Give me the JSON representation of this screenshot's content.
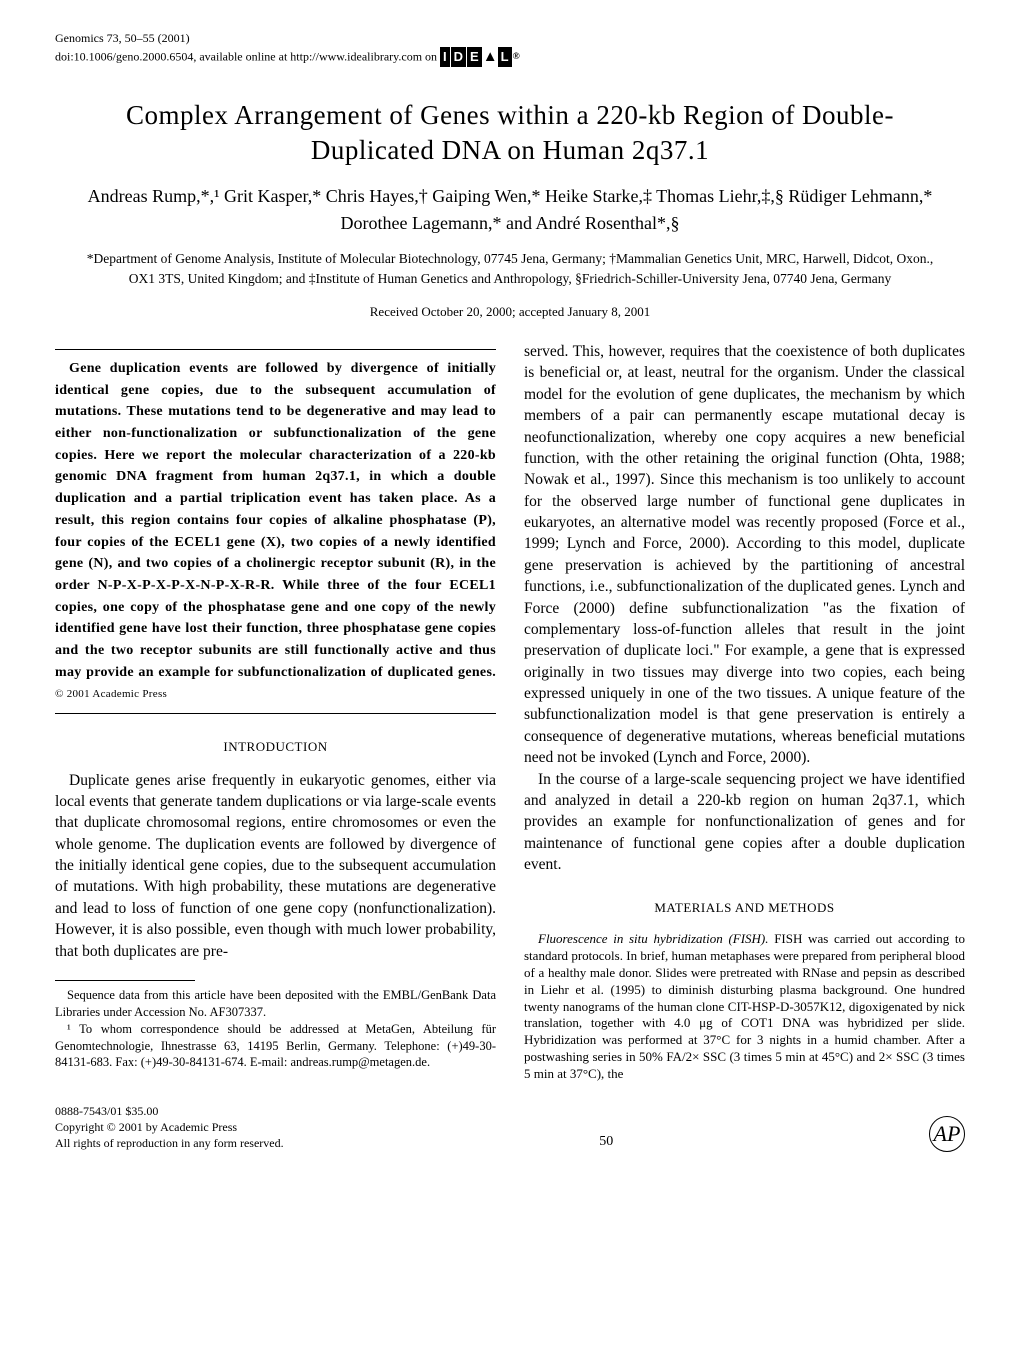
{
  "header": {
    "journal": "Genomics 73, 50–55 (2001)",
    "doi": "doi:10.1006/geno.2000.6504, available online at http://www.idealibrary.com on",
    "logo_text": "IDEAL",
    "logo_reg": "®"
  },
  "title": "Complex Arrangement of Genes within a 220-kb Region of Double-Duplicated DNA on Human 2q37.1",
  "authors": "Andreas Rump,*,¹ Grit Kasper,* Chris Hayes,† Gaiping Wen,* Heike Starke,‡ Thomas Liehr,‡,§ Rüdiger Lehmann,* Dorothee Lagemann,* and André Rosenthal*,§",
  "affiliations": "*Department of Genome Analysis, Institute of Molecular Biotechnology, 07745 Jena, Germany; †Mammalian Genetics Unit, MRC, Harwell, Didcot, Oxon., OX1 3TS, United Kingdom; and ‡Institute of Human Genetics and Anthropology, §Friedrich-Schiller-University Jena, 07740 Jena, Germany",
  "received": "Received October 20, 2000; accepted January 8, 2001",
  "abstract": "Gene duplication events are followed by divergence of initially identical gene copies, due to the subsequent accumulation of mutations. These mutations tend to be degenerative and may lead to either non-functionalization or subfunctionalization of the gene copies. Here we report the molecular characterization of a 220-kb genomic DNA fragment from human 2q37.1, in which a double duplication and a partial triplication event has taken place. As a result, this region contains four copies of alkaline phosphatase (P), four copies of the ECEL1 gene (X), two copies of a newly identified gene (N), and two copies of a cholinergic receptor subunit (R), in the order N-P-X-P-X-P-X-N-P-X-R-R. While three of the four ECEL1 copies, one copy of the phosphatase gene and one copy of the newly identified gene have lost their function, three phosphatase gene copies and the two receptor subunits are still functionally active and thus may provide an example for subfunctionalization of duplicated genes.",
  "abstract_copyright": "© 2001 Academic Press",
  "sections": {
    "introduction": {
      "heading": "INTRODUCTION",
      "para1": "Duplicate genes arise frequently in eukaryotic genomes, either via local events that generate tandem duplications or via large-scale events that duplicate chromosomal regions, entire chromosomes or even the whole genome. The duplication events are followed by divergence of the initially identical gene copies, due to the subsequent accumulation of mutations. With high probability, these mutations are degenerative and lead to loss of function of one gene copy (nonfunctionalization). However, it is also possible, even though with much lower probability, that both duplicates are pre-",
      "para1_cont": "served. This, however, requires that the coexistence of both duplicates is beneficial or, at least, neutral for the organism. Under the classical model for the evolution of gene duplicates, the mechanism by which members of a pair can permanently escape mutational decay is neofunctionalization, whereby one copy acquires a new beneficial function, with the other retaining the original function (Ohta, 1988; Nowak et al., 1997). Since this mechanism is too unlikely to account for the observed large number of functional gene duplicates in eukaryotes, an alternative model was recently proposed (Force et al., 1999; Lynch and Force, 2000). According to this model, duplicate gene preservation is achieved by the partitioning of ancestral functions, i.e., subfunctionalization of the duplicated genes. Lynch and Force (2000) define subfunctionalization \"as the fixation of complementary loss-of-function alleles that result in the joint preservation of duplicate loci.\" For example, a gene that is expressed originally in two tissues may diverge into two copies, each being expressed uniquely in one of the two tissues. A unique feature of the subfunctionalization model is that gene preservation is entirely a consequence of degenerative mutations, whereas beneficial mutations need not be invoked (Lynch and Force, 2000).",
      "para2": "In the course of a large-scale sequencing project we have identified and analyzed in detail a 220-kb region on human 2q37.1, which provides an example for nonfunctionalization of genes and for maintenance of functional gene copies after a double duplication event."
    },
    "methods": {
      "heading": "MATERIALS AND METHODS",
      "para1_label": "Fluorescence in situ hybridization (FISH).",
      "para1": "FISH was carried out according to standard protocols. In brief, human metaphases were prepared from peripheral blood of a healthy male donor. Slides were pretreated with RNase and pepsin as described in Liehr et al. (1995) to diminish disturbing plasma background. One hundred twenty nanograms of the human clone CIT-HSP-D-3057K12, digoxigenated by nick translation, together with 4.0 μg of COT1 DNA was hybridized per slide. Hybridization was performed at 37°C for 3 nights in a humid chamber. After a postwashing series in 50% FA/2× SSC (3 times 5 min at 45°C) and 2× SSC (3 times 5 min at 37°C), the"
    }
  },
  "footnotes": {
    "note1": "Sequence data from this article have been deposited with the EMBL/GenBank Data Libraries under Accession No. AF307337.",
    "note2": "¹ To whom correspondence should be addressed at MetaGen, Abteilung für Genomtechnologie, Ihnestrasse 63, 14195 Berlin, Germany. Telephone: (+)49-30-84131-683. Fax: (+)49-30-84131-674. E-mail: andreas.rump@metagen.de."
  },
  "footer": {
    "line1": "0888-7543/01 $35.00",
    "line2": "Copyright © 2001 by Academic Press",
    "line3": "All rights of reproduction in any form reserved.",
    "page": "50",
    "logo": "AP"
  },
  "colors": {
    "text": "#000000",
    "background": "#ffffff"
  }
}
